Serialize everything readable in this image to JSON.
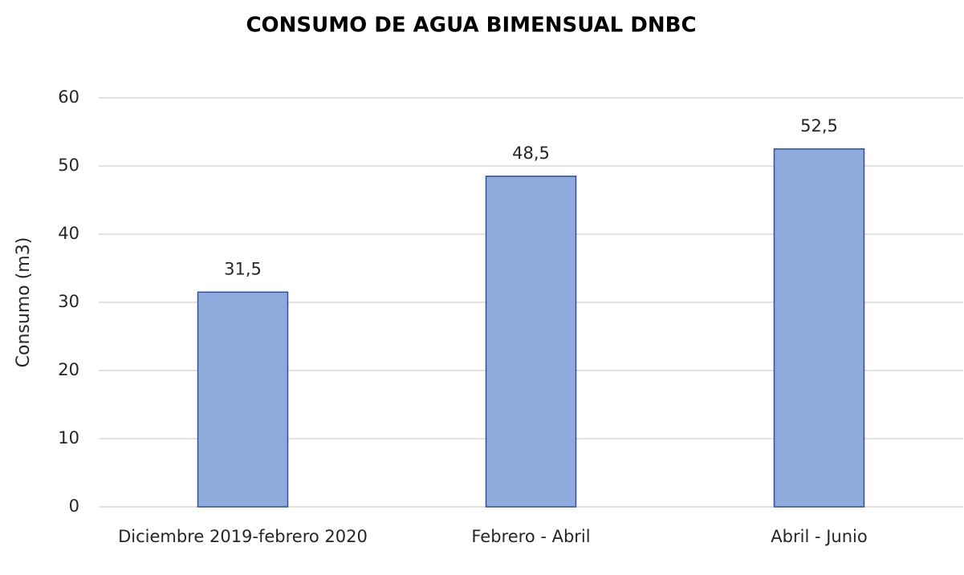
{
  "chart_data": {
    "type": "bar",
    "title": "CONSUMO DE AGUA BIMENSUAL DNBC",
    "y_label": "Consumo (m3)",
    "categories": [
      "Diciembre 2019-febrero 2020",
      "Febrero - Abril",
      "Abril - Junio"
    ],
    "values": [
      31.5,
      48.5,
      52.5
    ],
    "value_labels": [
      "31,5",
      "48,5",
      "52,5"
    ],
    "color": "#8faadc",
    "ylim": [
      0,
      60
    ],
    "yticks": [
      0,
      10,
      20,
      30,
      40,
      50,
      60
    ],
    "grid": true
  }
}
